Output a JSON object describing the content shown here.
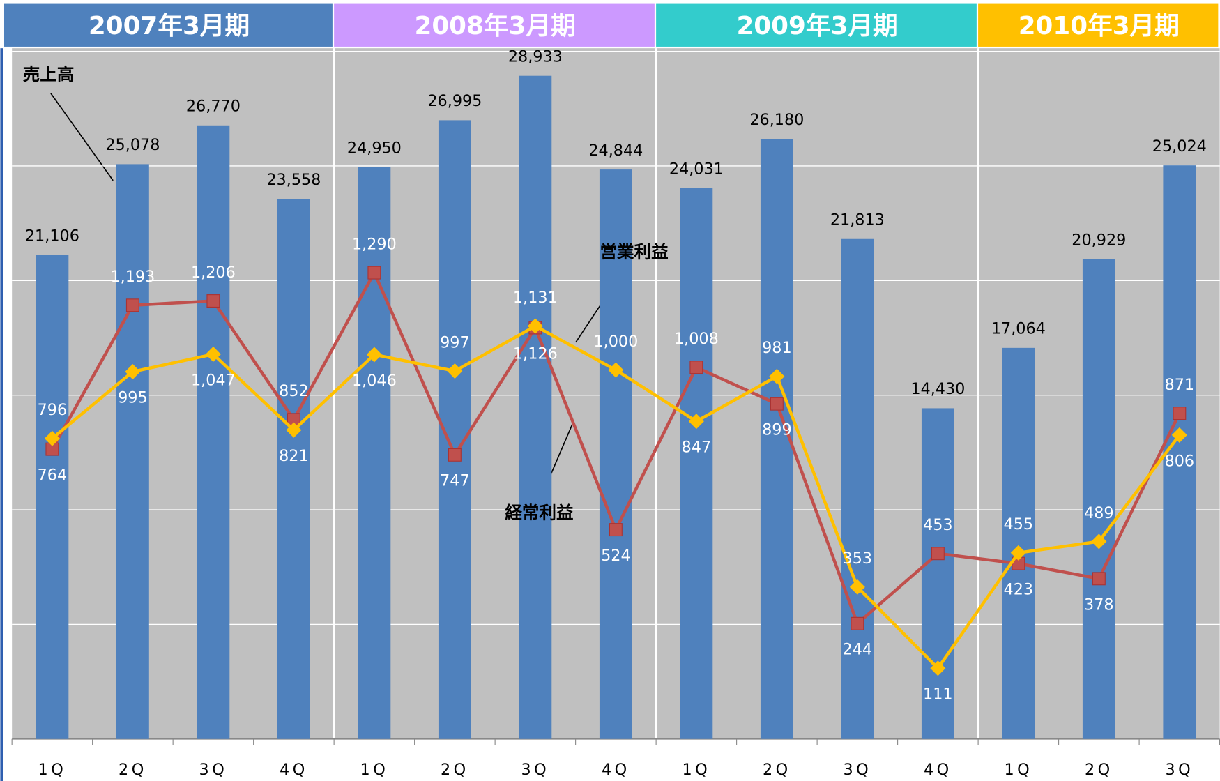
{
  "chart_data": {
    "type": "bar",
    "categories": [
      "1Q",
      "2Q",
      "3Q",
      "4Q",
      "1Q",
      "2Q",
      "3Q",
      "4Q",
      "1Q",
      "2Q",
      "3Q",
      "4Q",
      "1Q",
      "2Q",
      "3Q"
    ],
    "groups": [
      {
        "label": "2007年3月期",
        "color": "#4f81bd"
      },
      {
        "label": "2008年3月期",
        "color": "#cc99ff"
      },
      {
        "label": "2009年3月期",
        "color": "#33cccc"
      },
      {
        "label": "2010年3月期",
        "color": "#ffc000"
      }
    ],
    "series": [
      {
        "name": "売上高",
        "type": "bar",
        "color": "#4f81bd",
        "values": [
          21106,
          25078,
          26770,
          23558,
          24950,
          26995,
          28933,
          24844,
          24031,
          26180,
          21813,
          14430,
          17064,
          20929,
          25024
        ],
        "value_labels": [
          "21,106",
          "25,078",
          "26,770",
          "23,558",
          "24,950",
          "26,995",
          "28,933",
          "24,844",
          "24,031",
          "26,180",
          "21,813",
          "14,430",
          "17,064",
          "20,929",
          "25,024"
        ]
      },
      {
        "name": "営業利益",
        "type": "line",
        "axis": "y2",
        "color": "#ffc000",
        "values": [
          796,
          995,
          1047,
          821,
          1046,
          997,
          1131,
          1000,
          847,
          981,
          353,
          111,
          455,
          489,
          806
        ],
        "value_labels": [
          "796",
          "995",
          "1,047",
          "821",
          "1,046",
          "997",
          "1,131",
          "1,000",
          "847",
          "981",
          "353",
          "111",
          "455",
          "489",
          "806"
        ]
      },
      {
        "name": "経常利益",
        "type": "line",
        "axis": "y2",
        "color": "#c0504d",
        "values": [
          764,
          1193,
          1206,
          852,
          1290,
          747,
          1126,
          524,
          1008,
          899,
          244,
          453,
          423,
          378,
          871
        ],
        "value_labels": [
          "764",
          "1,193",
          "1,206",
          "852",
          "1,290",
          "747",
          "1,126",
          "524",
          "1,008",
          "899",
          "244",
          "453",
          "423",
          "378",
          "871"
        ]
      }
    ],
    "ylim": [
      0,
      30000
    ],
    "yticks": [
      0,
      5000,
      10000,
      15000,
      20000,
      25000,
      30000
    ],
    "y2lim": [
      -100,
      1950
    ],
    "grid": true
  }
}
